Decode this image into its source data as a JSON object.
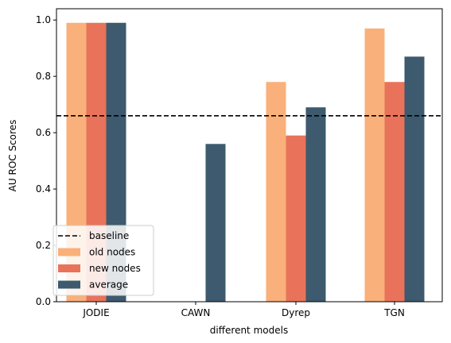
{
  "chart_data": {
    "type": "bar",
    "categories": [
      "JODIE",
      "CAWN",
      "Dyrep",
      "TGN"
    ],
    "series": [
      {
        "name": "old nodes",
        "values": [
          0.99,
          0.0,
          0.78,
          0.97
        ],
        "color": "#F9B07A"
      },
      {
        "name": "new nodes",
        "values": [
          0.99,
          0.0,
          0.59,
          0.78
        ],
        "color": "#E8735A"
      },
      {
        "name": "average",
        "values": [
          0.99,
          0.56,
          0.69,
          0.87
        ],
        "color": "#3D5A6E"
      }
    ],
    "baseline": {
      "name": "baseline",
      "value": 0.66,
      "color": "#000000",
      "style": "dashed"
    },
    "xlabel": "different models",
    "ylabel": "AU ROC Scores",
    "ylim": [
      0.0,
      1.04
    ],
    "yticks": [
      "0.0",
      "0.2",
      "0.4",
      "0.6",
      "0.8",
      "1.0"
    ],
    "grid": false,
    "legend_position": "lower-left"
  }
}
